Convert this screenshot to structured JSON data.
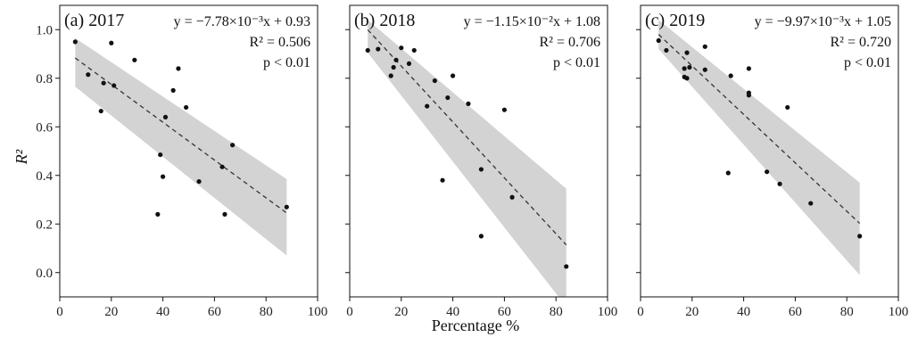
{
  "chart_data": [
    {
      "type": "scatter",
      "title": "(a) 2017",
      "equation": "y = −7.78×10⁻³x + 0.93",
      "r2_text": "R² = 0.506",
      "p_text": "p < 0.01",
      "slope": -0.00778,
      "intercept": 0.93,
      "band": [
        [
          6,
          0.765,
          0.965
        ],
        [
          88,
          0.07,
          0.385
        ]
      ],
      "xlim": [
        0,
        100
      ],
      "ylim": [
        -0.1,
        1.1
      ],
      "points": [
        [
          6,
          0.95
        ],
        [
          11,
          0.815
        ],
        [
          16,
          0.665
        ],
        [
          17,
          0.78
        ],
        [
          20,
          0.945
        ],
        [
          21,
          0.77
        ],
        [
          29,
          0.875
        ],
        [
          38,
          0.24
        ],
        [
          39,
          0.485
        ],
        [
          40,
          0.395
        ],
        [
          41,
          0.64
        ],
        [
          44,
          0.75
        ],
        [
          46,
          0.84
        ],
        [
          49,
          0.68
        ],
        [
          54,
          0.375
        ],
        [
          63,
          0.435
        ],
        [
          64,
          0.24
        ],
        [
          67,
          0.525
        ],
        [
          88,
          0.27
        ]
      ]
    },
    {
      "type": "scatter",
      "title": "(b) 2018",
      "equation": "y = −1.15×10⁻²x + 1.08",
      "r2_text": "R² = 0.706",
      "p_text": "p < 0.01",
      "slope": -0.0115,
      "intercept": 1.08,
      "band": [
        [
          7,
          0.905,
          1.04
        ],
        [
          84,
          -0.14,
          0.345
        ]
      ],
      "xlim": [
        0,
        100
      ],
      "ylim": [
        -0.1,
        1.1
      ],
      "points": [
        [
          7,
          0.915
        ],
        [
          11,
          0.92
        ],
        [
          16,
          0.81
        ],
        [
          17,
          0.845
        ],
        [
          18,
          0.875
        ],
        [
          20,
          0.925
        ],
        [
          23,
          0.86
        ],
        [
          25,
          0.915
        ],
        [
          30,
          0.685
        ],
        [
          33,
          0.79
        ],
        [
          36,
          0.38
        ],
        [
          38,
          0.72
        ],
        [
          40,
          0.81
        ],
        [
          46,
          0.695
        ],
        [
          51,
          0.425
        ],
        [
          51,
          0.15
        ],
        [
          60,
          0.67
        ],
        [
          63,
          0.31
        ],
        [
          84,
          0.025
        ]
      ]
    },
    {
      "type": "scatter",
      "title": "(c) 2019",
      "equation": "y = −9.97×10⁻³x + 1.05",
      "r2_text": "R² = 0.720",
      "p_text": "p < 0.01",
      "slope": -0.00997,
      "intercept": 1.05,
      "band": [
        [
          7,
          0.92,
          1.04
        ],
        [
          85,
          -0.01,
          0.37
        ]
      ],
      "xlim": [
        0,
        100
      ],
      "ylim": [
        -0.1,
        1.1
      ],
      "points": [
        [
          7,
          0.955
        ],
        [
          10,
          0.915
        ],
        [
          17,
          0.84
        ],
        [
          17,
          0.805
        ],
        [
          18,
          0.905
        ],
        [
          18,
          0.8
        ],
        [
          19,
          0.845
        ],
        [
          25,
          0.93
        ],
        [
          25,
          0.835
        ],
        [
          35,
          0.81
        ],
        [
          42,
          0.84
        ],
        [
          42,
          0.73
        ],
        [
          42,
          0.74
        ],
        [
          34,
          0.41
        ],
        [
          49,
          0.415
        ],
        [
          54,
          0.365
        ],
        [
          57,
          0.68
        ],
        [
          66,
          0.285
        ],
        [
          85,
          0.15
        ]
      ]
    }
  ],
  "axes": {
    "ylabel": "R²",
    "xlabel": "Percentage %",
    "xticks": [
      0,
      20,
      40,
      60,
      80,
      100
    ],
    "yticks": [
      0.0,
      0.2,
      0.4,
      0.6,
      0.8,
      1.0
    ],
    "ytick_labels": [
      "0.0",
      "0.2",
      "0.4",
      "0.6",
      "0.8",
      "1.0"
    ]
  }
}
